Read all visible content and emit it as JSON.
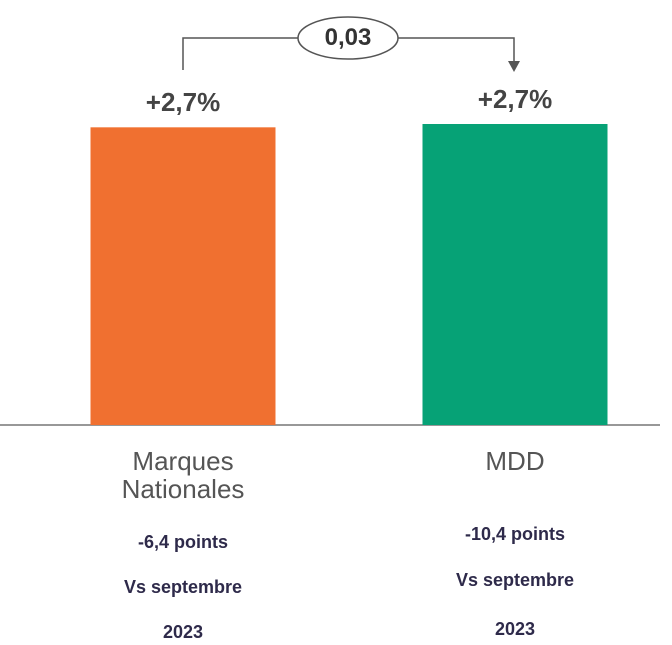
{
  "chart_data": {
    "type": "bar",
    "categories": [
      "Marques Nationales",
      "MDD"
    ],
    "values": [
      2.69,
      2.72
    ],
    "value_labels": [
      "+2,7%",
      "+2,7%"
    ],
    "colors": [
      "#f07030",
      "#06a276"
    ],
    "annotation": "0,03",
    "notes": [
      [
        "-6,4 points",
        "Vs septembre",
        "2023"
      ],
      [
        "-10,4 points",
        "Vs septembre",
        "2023"
      ]
    ]
  }
}
